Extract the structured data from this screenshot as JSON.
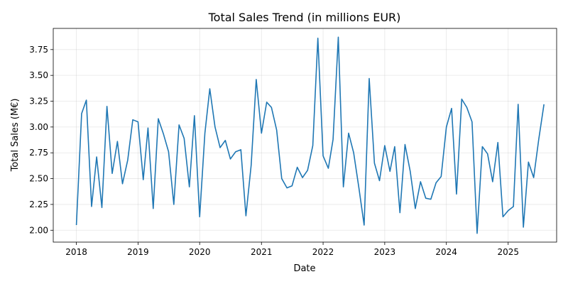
{
  "chart_data": {
    "type": "line",
    "title": "Total Sales Trend (in millions EUR)",
    "xlabel": "Date",
    "ylabel": "Total Sales (M€)",
    "x_ticks": [
      "2018",
      "2019",
      "2020",
      "2021",
      "2022",
      "2023",
      "2024",
      "2025"
    ],
    "y_ticks": [
      "2.00",
      "2.25",
      "2.50",
      "2.75",
      "3.00",
      "3.25",
      "3.50",
      "3.75"
    ],
    "xlim": [
      "2017-08-17",
      "2025-10-15"
    ],
    "ylim": [
      1.885,
      3.955
    ],
    "grid": true,
    "series": [
      {
        "color": "#1f77b4",
        "x": [
          "2018-01-01",
          "2018-02-01",
          "2018-03-01",
          "2018-04-01",
          "2018-05-01",
          "2018-06-01",
          "2018-07-01",
          "2018-08-01",
          "2018-09-01",
          "2018-10-01",
          "2018-11-01",
          "2018-12-01",
          "2019-01-01",
          "2019-02-01",
          "2019-03-01",
          "2019-04-01",
          "2019-05-01",
          "2019-06-01",
          "2019-07-01",
          "2019-08-01",
          "2019-09-01",
          "2019-10-01",
          "2019-11-01",
          "2019-12-01",
          "2020-01-01",
          "2020-02-01",
          "2020-03-01",
          "2020-04-01",
          "2020-05-01",
          "2020-06-01",
          "2020-07-01",
          "2020-08-01",
          "2020-09-01",
          "2020-10-01",
          "2020-11-01",
          "2020-12-01",
          "2021-01-01",
          "2021-02-01",
          "2021-03-01",
          "2021-04-01",
          "2021-05-01",
          "2021-06-01",
          "2021-07-01",
          "2021-08-01",
          "2021-09-01",
          "2021-10-01",
          "2021-11-01",
          "2021-12-01",
          "2022-01-01",
          "2022-02-01",
          "2022-03-01",
          "2022-04-01",
          "2022-05-01",
          "2022-06-01",
          "2022-07-01",
          "2022-08-01",
          "2022-09-01",
          "2022-10-01",
          "2022-11-01",
          "2022-12-01",
          "2023-01-01",
          "2023-02-01",
          "2023-03-01",
          "2023-04-01",
          "2023-05-01",
          "2023-06-01",
          "2023-07-01",
          "2023-08-01",
          "2023-09-01",
          "2023-10-01",
          "2023-11-01",
          "2023-12-01",
          "2024-01-01",
          "2024-02-01",
          "2024-03-01",
          "2024-04-01",
          "2024-05-01",
          "2024-06-01",
          "2024-07-01",
          "2024-08-01",
          "2024-09-01",
          "2024-10-01",
          "2024-11-01",
          "2024-12-01",
          "2025-01-01",
          "2025-02-01",
          "2025-03-01",
          "2025-04-01",
          "2025-05-01",
          "2025-06-01",
          "2025-07-01",
          "2025-08-01"
        ],
        "values": [
          2.05,
          3.13,
          3.26,
          2.23,
          2.71,
          2.22,
          3.2,
          2.55,
          2.86,
          2.45,
          2.68,
          3.07,
          3.05,
          2.49,
          2.99,
          2.21,
          3.08,
          2.93,
          2.76,
          2.25,
          3.02,
          2.89,
          2.42,
          3.11,
          2.13,
          2.94,
          3.37,
          3.0,
          2.8,
          2.87,
          2.69,
          2.76,
          2.78,
          2.14,
          2.63,
          3.46,
          2.94,
          3.24,
          3.19,
          2.97,
          2.5,
          2.41,
          2.43,
          2.61,
          2.51,
          2.58,
          2.82,
          3.86,
          2.72,
          2.6,
          2.88,
          3.87,
          2.42,
          2.94,
          2.75,
          2.41,
          2.05,
          3.47,
          2.65,
          2.48,
          2.82,
          2.57,
          2.81,
          2.17,
          2.83,
          2.57,
          2.21,
          2.47,
          2.31,
          2.3,
          2.46,
          2.52,
          3.0,
          3.18,
          2.35,
          3.27,
          3.19,
          3.05,
          1.97,
          2.81,
          2.74,
          2.47,
          2.85,
          2.13,
          2.19,
          2.23,
          3.22,
          2.03,
          2.66,
          2.51,
          2.88,
          3.22
        ]
      }
    ]
  }
}
